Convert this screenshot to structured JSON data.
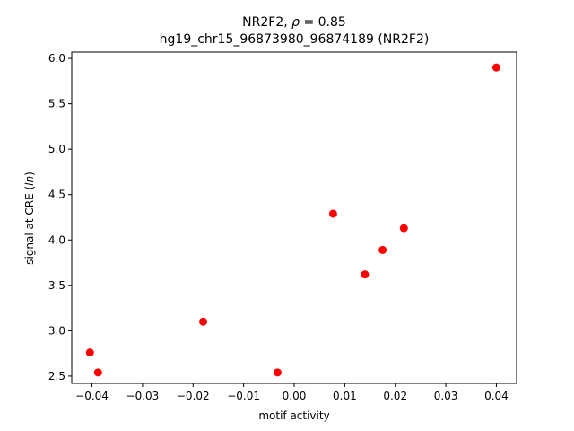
{
  "chart_data": {
    "type": "scatter",
    "title_line1_prefix": "NR2F2, ",
    "title_line1_rho": "ρ",
    "title_line1_suffix": " = 0.85",
    "title_line2": "hg19_chr15_96873980_96874189 (NR2F2)",
    "xlabel": "motif activity",
    "ylabel_prefix": "signal at CRE (",
    "ylabel_italic": "ln",
    "ylabel_suffix": ")",
    "xlim": [
      -0.044,
      0.044
    ],
    "ylim": [
      2.42,
      6.07
    ],
    "xticks": [
      -0.04,
      -0.03,
      -0.02,
      -0.01,
      0.0,
      0.01,
      0.02,
      0.03,
      0.04
    ],
    "xtick_labels": [
      "−0.04",
      "−0.03",
      "−0.02",
      "−0.01",
      "0.00",
      "0.01",
      "0.02",
      "0.03",
      "0.04"
    ],
    "yticks": [
      2.5,
      3.0,
      3.5,
      4.0,
      4.5,
      5.0,
      5.5,
      6.0
    ],
    "ytick_labels": [
      "2.5",
      "3.0",
      "3.5",
      "4.0",
      "4.5",
      "5.0",
      "5.5",
      "6.0"
    ],
    "grid": false,
    "point_color": "#ff0000",
    "points": [
      {
        "x": -0.0404,
        "y": 2.76
      },
      {
        "x": -0.0388,
        "y": 2.54
      },
      {
        "x": -0.018,
        "y": 3.1
      },
      {
        "x": -0.0033,
        "y": 2.54
      },
      {
        "x": 0.0077,
        "y": 4.29
      },
      {
        "x": 0.014,
        "y": 3.62
      },
      {
        "x": 0.0175,
        "y": 3.89
      },
      {
        "x": 0.0217,
        "y": 4.13
      },
      {
        "x": 0.04,
        "y": 5.9
      }
    ]
  }
}
